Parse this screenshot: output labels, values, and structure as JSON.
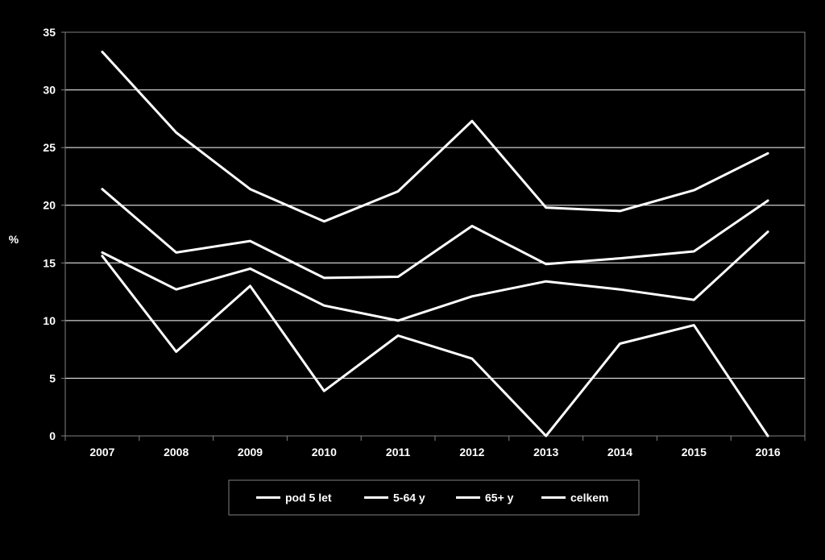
{
  "chart_data": {
    "type": "line",
    "title": "",
    "xlabel": "",
    "ylabel": "%",
    "ylim": [
      0,
      35
    ],
    "yticks": [
      0,
      5,
      10,
      15,
      20,
      25,
      30,
      35
    ],
    "grid": true,
    "legend_position": "bottom",
    "categories": [
      "2007",
      "2008",
      "2009",
      "2010",
      "2011",
      "2012",
      "2013",
      "2014",
      "2015",
      "2016"
    ],
    "series": [
      {
        "name": "pod 5 let",
        "values": [
          33.3,
          26.3,
          21.4,
          18.6,
          21.2,
          27.3,
          19.8,
          19.5,
          21.3,
          24.5
        ]
      },
      {
        "name": "5-64 y",
        "values": [
          15.6,
          7.3,
          13.0,
          3.9,
          8.7,
          6.7,
          0.0,
          8.0,
          9.6,
          0.0
        ]
      },
      {
        "name": "65+ y",
        "values": [
          15.9,
          12.7,
          14.5,
          11.3,
          10.0,
          12.1,
          13.4,
          12.7,
          11.8,
          17.7
        ]
      },
      {
        "name": "celkem",
        "values": [
          21.4,
          15.9,
          16.9,
          13.7,
          13.8,
          18.2,
          14.9,
          15.4,
          16.0,
          20.4
        ]
      }
    ],
    "colors": {
      "background": "#000000",
      "line": "#ffffff",
      "grid": "#ffffff",
      "axis": "#808080"
    }
  }
}
